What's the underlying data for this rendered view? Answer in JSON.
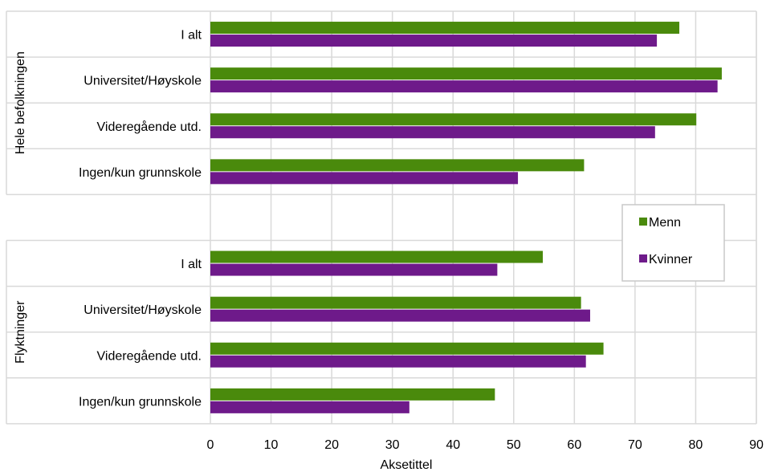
{
  "chart_data": {
    "type": "bar",
    "orientation": "horizontal",
    "xlabel": "Aksetittel",
    "xlim": [
      0,
      90
    ],
    "x_ticks": [
      0,
      10,
      20,
      30,
      40,
      50,
      60,
      70,
      80,
      90
    ],
    "grid": true,
    "legend_position": "right",
    "groups": [
      {
        "label": "Hele befolkningen",
        "categories": [
          "I alt",
          "Universitet/Høyskole",
          "Videregående utd.",
          "Ingen/kun grunnskole"
        ]
      },
      {
        "label": "Flyktninger",
        "categories": [
          "I alt",
          "Universitet/Høyskole",
          "Videregående utd.",
          "Ingen/kun grunnskole"
        ]
      }
    ],
    "series": [
      {
        "name": "Menn",
        "color": "#4a8a0c",
        "values": [
          [
            77.3,
            84.3,
            80.1,
            61.6
          ],
          [
            54.8,
            61.1,
            64.8,
            46.9
          ]
        ]
      },
      {
        "name": "Kvinner",
        "color": "#6e1a8a",
        "values": [
          [
            73.6,
            83.6,
            73.3,
            50.7
          ],
          [
            47.3,
            62.6,
            61.9,
            32.8
          ]
        ]
      }
    ]
  }
}
